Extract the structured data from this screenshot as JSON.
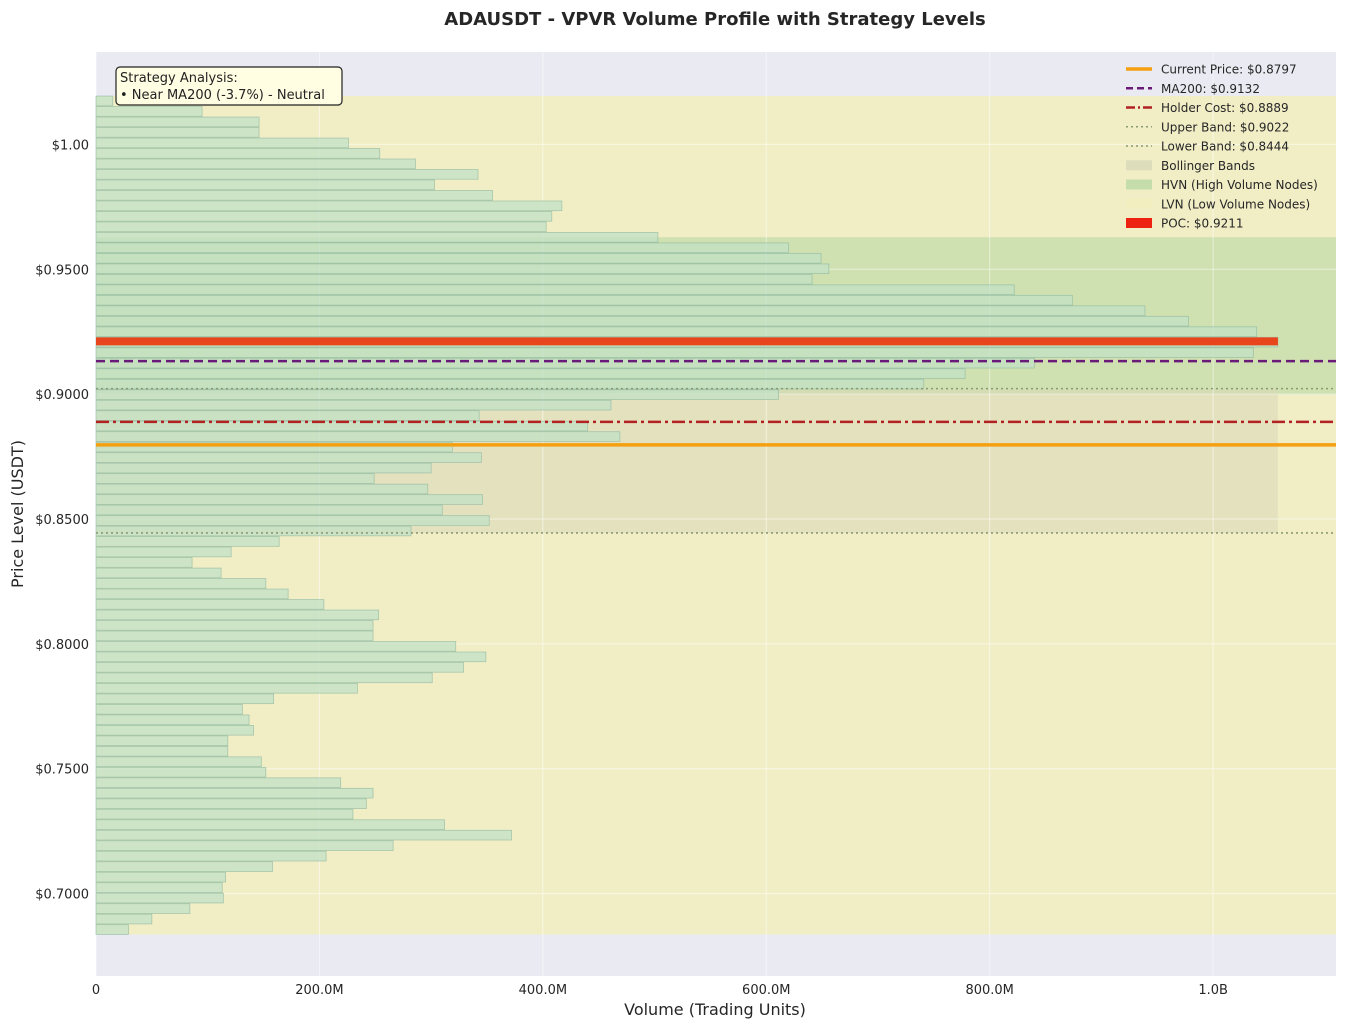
{
  "chart_data": {
    "type": "bar",
    "orientation": "horizontal",
    "title": "ADAUSDT - VPVR Volume Profile with Strategy Levels",
    "xlabel": "Volume (Trading Units)",
    "ylabel": "Price Level (USDT)",
    "xlim": [
      0,
      1110000000
    ],
    "ylim": [
      0.667,
      1.037
    ],
    "grid": true,
    "legend_position": "top-right",
    "x_ticks": [
      {
        "value": 0,
        "label": "0"
      },
      {
        "value": 200000000,
        "label": "200.0M"
      },
      {
        "value": 400000000,
        "label": "400.0M"
      },
      {
        "value": 600000000,
        "label": "600.0M"
      },
      {
        "value": 800000000,
        "label": "800.0M"
      },
      {
        "value": 1000000000,
        "label": "1.0B"
      }
    ],
    "y_ticks": [
      {
        "value": 0.7,
        "label": "$0.7000"
      },
      {
        "value": 0.75,
        "label": "$0.7500"
      },
      {
        "value": 0.8,
        "label": "$0.8000"
      },
      {
        "value": 0.85,
        "label": "$0.8500"
      },
      {
        "value": 0.9,
        "label": "$0.9000"
      },
      {
        "value": 0.95,
        "label": "$0.9500"
      },
      {
        "value": 1.0,
        "label": "$1.00"
      }
    ],
    "bin_height": 0.0039,
    "series": [
      {
        "name": "Volume",
        "price": [
          0.6856,
          0.6898,
          0.694,
          0.6982,
          0.7024,
          0.7066,
          0.7108,
          0.715,
          0.7192,
          0.7234,
          0.7276,
          0.7318,
          0.736,
          0.7402,
          0.7444,
          0.7486,
          0.7528,
          0.757,
          0.7612,
          0.7654,
          0.7696,
          0.7738,
          0.778,
          0.7822,
          0.7864,
          0.7906,
          0.7948,
          0.799,
          0.8032,
          0.8074,
          0.8116,
          0.8158,
          0.82,
          0.8242,
          0.8284,
          0.8326,
          0.8368,
          0.841,
          0.8452,
          0.8494,
          0.8536,
          0.8578,
          0.862,
          0.8662,
          0.8704,
          0.8746,
          0.8788,
          0.883,
          0.8872,
          0.8914,
          0.8956,
          0.8998,
          0.904,
          0.9082,
          0.9124,
          0.9166,
          0.9208,
          0.925,
          0.9292,
          0.9334,
          0.9376,
          0.9418,
          0.946,
          0.9502,
          0.9544,
          0.9586,
          0.9628,
          0.967,
          0.9712,
          0.9754,
          0.9796,
          0.9838,
          0.988,
          0.9922,
          0.9964,
          1.0006,
          1.0048,
          1.009,
          1.0132,
          1.0174
        ],
        "values": [
          29000000,
          50000000,
          84000000,
          114000000,
          113000000,
          116000000,
          158000000,
          206000000,
          266000000,
          372000000,
          312000000,
          230000000,
          242000000,
          248000000,
          219000000,
          152000000,
          148000000,
          118000000,
          118000000,
          141000000,
          137000000,
          131000000,
          159000000,
          234000000,
          301000000,
          329000000,
          349000000,
          322000000,
          248000000,
          248000000,
          253000000,
          204000000,
          172000000,
          152000000,
          112000000,
          86000000,
          121000000,
          164000000,
          282000000,
          352000000,
          310000000,
          346000000,
          297000000,
          249000000,
          300000000,
          345000000,
          319000000,
          469000000,
          440000000,
          343000000,
          461000000,
          611000000,
          741000000,
          778000000,
          840000000,
          1036000000,
          1058000000,
          1039000000,
          978000000,
          939000000,
          874000000,
          822000000,
          641000000,
          656000000,
          649000000,
          620000000,
          503000000,
          403000000,
          408000000,
          417000000,
          355000000,
          303000000,
          342000000,
          286000000,
          254000000,
          226000000,
          146000000,
          146000000,
          95000000,
          15000000
        ]
      }
    ],
    "levels": {
      "current_price": {
        "value": 0.8797,
        "label": "Current Price: $0.8797",
        "color": "#f4a011"
      },
      "ma200": {
        "value": 0.9132,
        "label": "MA200: $0.9132",
        "color": "#6a1b7a"
      },
      "holder_cost": {
        "value": 0.8889,
        "label": "Holder Cost: $0.8889",
        "color": "#b22222"
      },
      "upper_band": {
        "value": 0.9022,
        "label": "Upper Band: $0.9022",
        "color": "#8a9a74"
      },
      "lower_band": {
        "value": 0.8444,
        "label": "Lower Band: $0.8444",
        "color": "#8a9a74"
      },
      "poc": {
        "value": 0.9211,
        "label": "POC: $0.9211",
        "color": "#e8451c"
      }
    },
    "zones": {
      "bollinger": {
        "label": "Bollinger Bands",
        "from": 0.8444,
        "to": 0.9022,
        "color": "#d9d8b8"
      },
      "hvn": {
        "label": "HVN (High Volume Nodes)",
        "from": 0.8998,
        "to": 0.9628,
        "color": "#b9d8a2"
      },
      "lvn": {
        "label": "LVN (Low Volume Nodes)",
        "from": 0.6836,
        "to": 1.0194,
        "color": "#f2eebe"
      }
    },
    "legend": [
      {
        "label": "Current Price: $0.8797",
        "style": "solid",
        "color": "#f4a011"
      },
      {
        "label": "MA200: $0.9132",
        "style": "dashed",
        "color": "#6a1b7a"
      },
      {
        "label": "Holder Cost: $0.8889",
        "style": "dashdot",
        "color": "#b22222"
      },
      {
        "label": "Upper Band: $0.9022",
        "style": "dotted",
        "color": "#8a9a74"
      },
      {
        "label": "Lower Band: $0.8444",
        "style": "dotted",
        "color": "#8a9a74"
      },
      {
        "label": "Bollinger Bands",
        "style": "patch",
        "color": "#d9d8b8"
      },
      {
        "label": "HVN (High Volume Nodes)",
        "style": "patch",
        "color": "#b9d8a2"
      },
      {
        "label": "LVN (Low Volume Nodes)",
        "style": "patch",
        "color": "#f2eebe"
      },
      {
        "label": "POC: $0.9211",
        "style": "patch",
        "color": "#ee2211"
      }
    ],
    "annotation": {
      "title": "Strategy Analysis:",
      "lines": [
        "• Near MA200 (-3.7%) - Neutral"
      ]
    }
  }
}
